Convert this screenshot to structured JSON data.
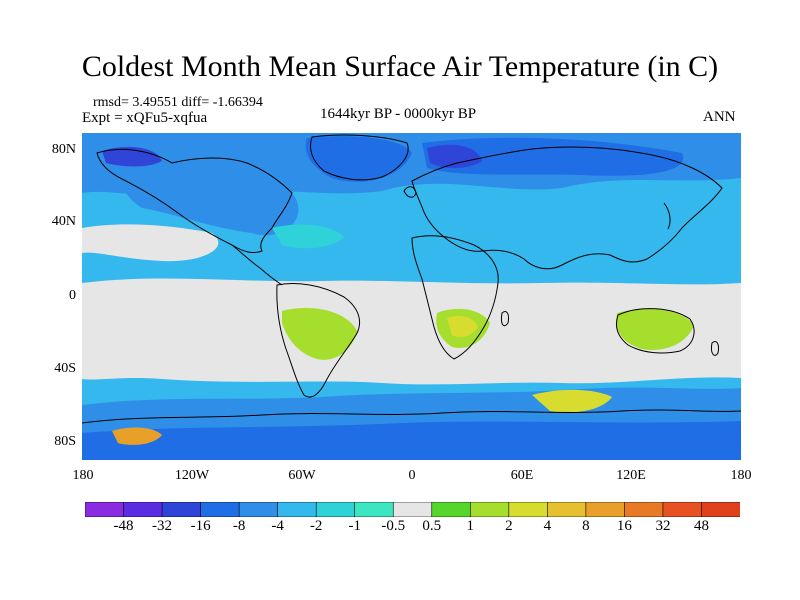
{
  "title": "Coldest Month Mean Surface Air Temperature (in C)",
  "stats": "rmsd= 3.49551 diff= -1.66394",
  "experiment": "Expt = xQFu5-xqfua",
  "period": "1644kyr BP - 0000kyr BP",
  "season": "ANN",
  "lat_labels": [
    "80N",
    "40N",
    "0",
    "40S",
    "80S"
  ],
  "lon_labels": [
    "180",
    "120W",
    "60W",
    "0",
    "60E",
    "120E",
    "180"
  ],
  "colorbar": {
    "colors": [
      "#8a2be2",
      "#5a2ee0",
      "#2f45d8",
      "#1f6ee6",
      "#2f8fe8",
      "#35b8ee",
      "#2fd2d8",
      "#3ce6c0",
      "#e6e6e6",
      "#56d62a",
      "#a6de2e",
      "#d8dc2e",
      "#e6c02e",
      "#e8a02a",
      "#e87a26",
      "#e85222",
      "#e0401c"
    ],
    "labels": [
      "-48",
      "-32",
      "-16",
      "-8",
      "-4",
      "-2",
      "-1",
      "-0.5",
      "0.5",
      "1",
      "2",
      "4",
      "8",
      "16",
      "32",
      "48"
    ]
  },
  "colors": {
    "ocean_base": "#35b8ee",
    "near_zero": "#e6e6e6",
    "warm_light": "#a6de2e",
    "warm_mid": "#d8dc2e",
    "warm_orange": "#e8a02a",
    "cold_mid": "#2f8fe8",
    "cold_deep": "#1f6ee6",
    "cold_deeper": "#2f45d8",
    "cool_teal": "#2fd2d8"
  }
}
